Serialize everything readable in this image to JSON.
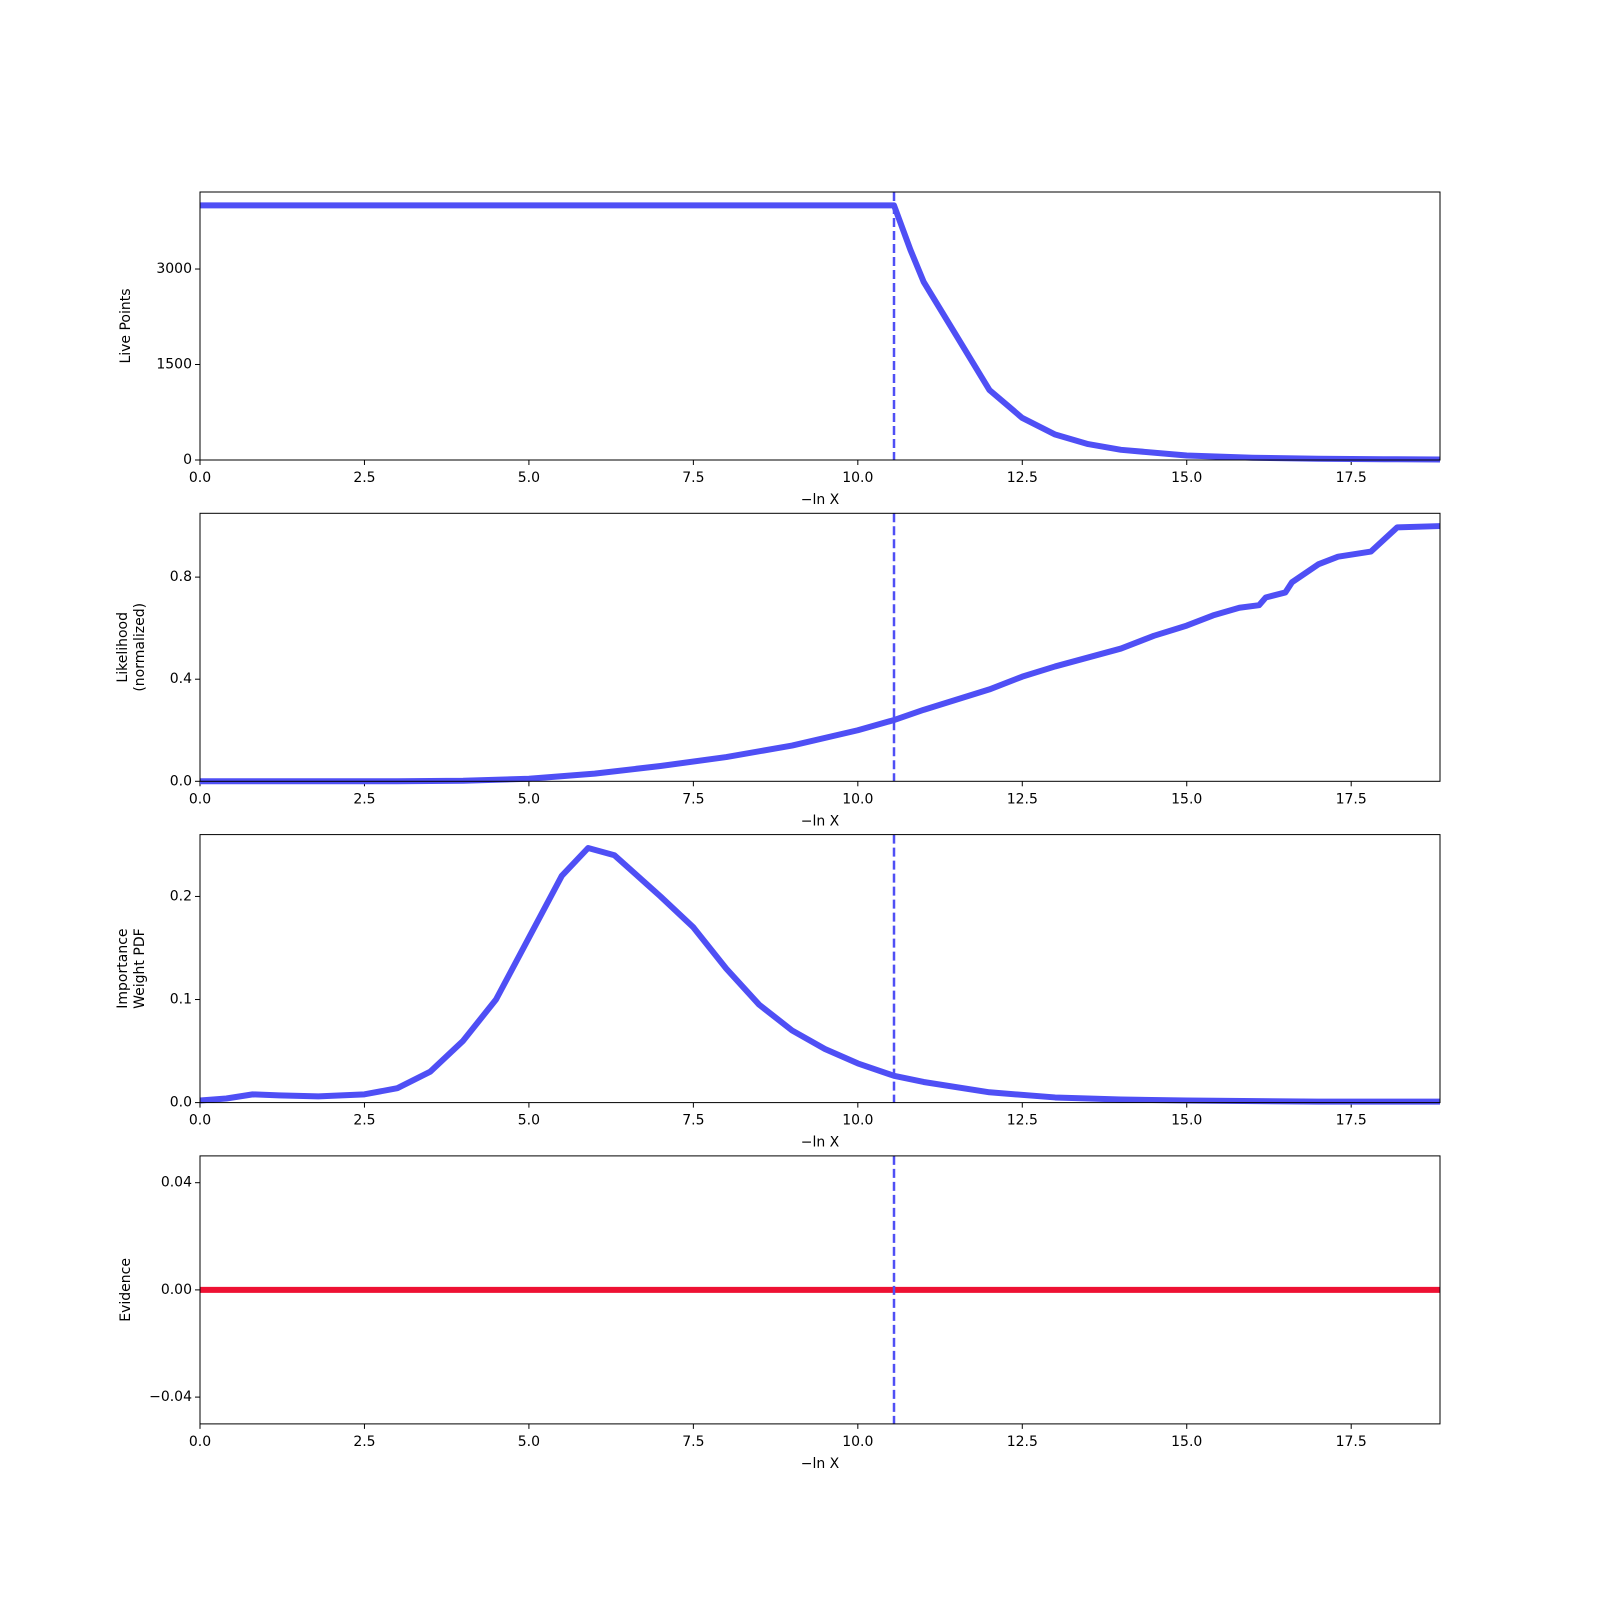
{
  "chart_data": [
    {
      "type": "line",
      "ylabel": [
        "Live Points"
      ],
      "xlabel": "−ln X",
      "x": [
        0,
        10.55,
        10.8,
        11,
        11.5,
        12,
        12.5,
        13,
        13.5,
        14,
        15,
        16,
        17,
        18,
        18.85
      ],
      "series": [
        {
          "color": "#4f4ff5",
          "values": [
            4000,
            4000,
            3300,
            2800,
            1950,
            1100,
            660,
            400,
            250,
            160,
            70,
            35,
            20,
            12,
            8
          ]
        }
      ],
      "vline": 10.55,
      "vline_color": "#4f4ff5",
      "xlim": [
        0,
        18.85
      ],
      "ylim": [
        0,
        4210
      ],
      "xticks": [
        {
          "value": 0,
          "label": "0.0"
        },
        2.5,
        {
          "value": 5,
          "label": "5.0"
        },
        7.5,
        {
          "value": 10,
          "label": "10.0"
        },
        12.5,
        {
          "value": 15,
          "label": "15.0"
        },
        17.5
      ],
      "yticks": [
        0,
        1500,
        3000
      ]
    },
    {
      "type": "line",
      "ylabel": [
        "Likelihood",
        "(normalized)"
      ],
      "xlabel": "−ln X",
      "x": [
        0,
        3,
        4,
        5,
        6,
        7,
        8,
        9,
        10,
        10.55,
        11,
        12,
        12.5,
        13,
        14,
        14.5,
        15,
        15.4,
        15.8,
        16.1,
        16.2,
        16.5,
        16.6,
        17,
        17.3,
        17.8,
        18.2,
        18.85
      ],
      "series": [
        {
          "color": "#4f4ff5",
          "values": [
            0,
            0,
            0.002,
            0.01,
            0.03,
            0.06,
            0.095,
            0.14,
            0.2,
            0.24,
            0.28,
            0.36,
            0.41,
            0.45,
            0.52,
            0.57,
            0.61,
            0.65,
            0.68,
            0.69,
            0.72,
            0.74,
            0.78,
            0.85,
            0.88,
            0.9,
            0.995,
            1.0
          ]
        }
      ],
      "vline": 10.55,
      "vline_color": "#4f4ff5",
      "xlim": [
        0,
        18.85
      ],
      "ylim": [
        0,
        1.05
      ],
      "xticks": [
        {
          "value": 0,
          "label": "0.0"
        },
        2.5,
        {
          "value": 5,
          "label": "5.0"
        },
        7.5,
        {
          "value": 10,
          "label": "10.0"
        },
        12.5,
        {
          "value": 15,
          "label": "15.0"
        },
        17.5
      ],
      "yticks": [
        {
          "value": 0,
          "label": "0.0"
        },
        0.4,
        0.8
      ]
    },
    {
      "type": "line",
      "ylabel": [
        "Importance",
        "Weight PDF"
      ],
      "xlabel": "−ln X",
      "x": [
        0,
        0.4,
        0.8,
        1.2,
        1.8,
        2.5,
        3,
        3.5,
        4,
        4.5,
        5,
        5.5,
        5.9,
        6.3,
        7,
        7.5,
        8,
        8.5,
        9,
        9.5,
        10,
        10.55,
        11,
        12,
        13,
        14,
        15,
        17,
        18.85
      ],
      "series": [
        {
          "color": "#4f4ff5",
          "values": [
            0.002,
            0.004,
            0.008,
            0.007,
            0.006,
            0.008,
            0.014,
            0.03,
            0.06,
            0.1,
            0.16,
            0.22,
            0.247,
            0.24,
            0.2,
            0.17,
            0.13,
            0.095,
            0.07,
            0.052,
            0.038,
            0.026,
            0.02,
            0.01,
            0.005,
            0.003,
            0.002,
            0.001,
            0.001
          ]
        }
      ],
      "vline": 10.55,
      "vline_color": "#4f4ff5",
      "xlim": [
        0,
        18.85
      ],
      "ylim": [
        0,
        0.26
      ],
      "xticks": [
        {
          "value": 0,
          "label": "0.0"
        },
        2.5,
        {
          "value": 5,
          "label": "5.0"
        },
        7.5,
        {
          "value": 10,
          "label": "10.0"
        },
        12.5,
        {
          "value": 15,
          "label": "15.0"
        },
        17.5
      ],
      "yticks": [
        {
          "value": 0,
          "label": "0.0"
        },
        0.1,
        0.2
      ]
    },
    {
      "type": "line",
      "ylabel": [
        "Evidence"
      ],
      "xlabel": "−ln X",
      "x": [
        0,
        18.85
      ],
      "series": [
        {
          "color": "#ee1133",
          "values": [
            0,
            0
          ]
        }
      ],
      "vline": 10.55,
      "vline_color": "#4f4ff5",
      "xlim": [
        0,
        18.85
      ],
      "ylim": [
        -0.05,
        0.05
      ],
      "xticks": [
        {
          "value": 0,
          "label": "0.0"
        },
        2.5,
        {
          "value": 5,
          "label": "5.0"
        },
        7.5,
        {
          "value": 10,
          "label": "10.0"
        },
        12.5,
        {
          "value": 15,
          "label": "15.0"
        },
        17.5
      ],
      "yticks": [
        {
          "value": -0.04,
          "label": "−0.04"
        },
        {
          "value": 0,
          "label": "0.00"
        },
        0.04
      ]
    }
  ]
}
